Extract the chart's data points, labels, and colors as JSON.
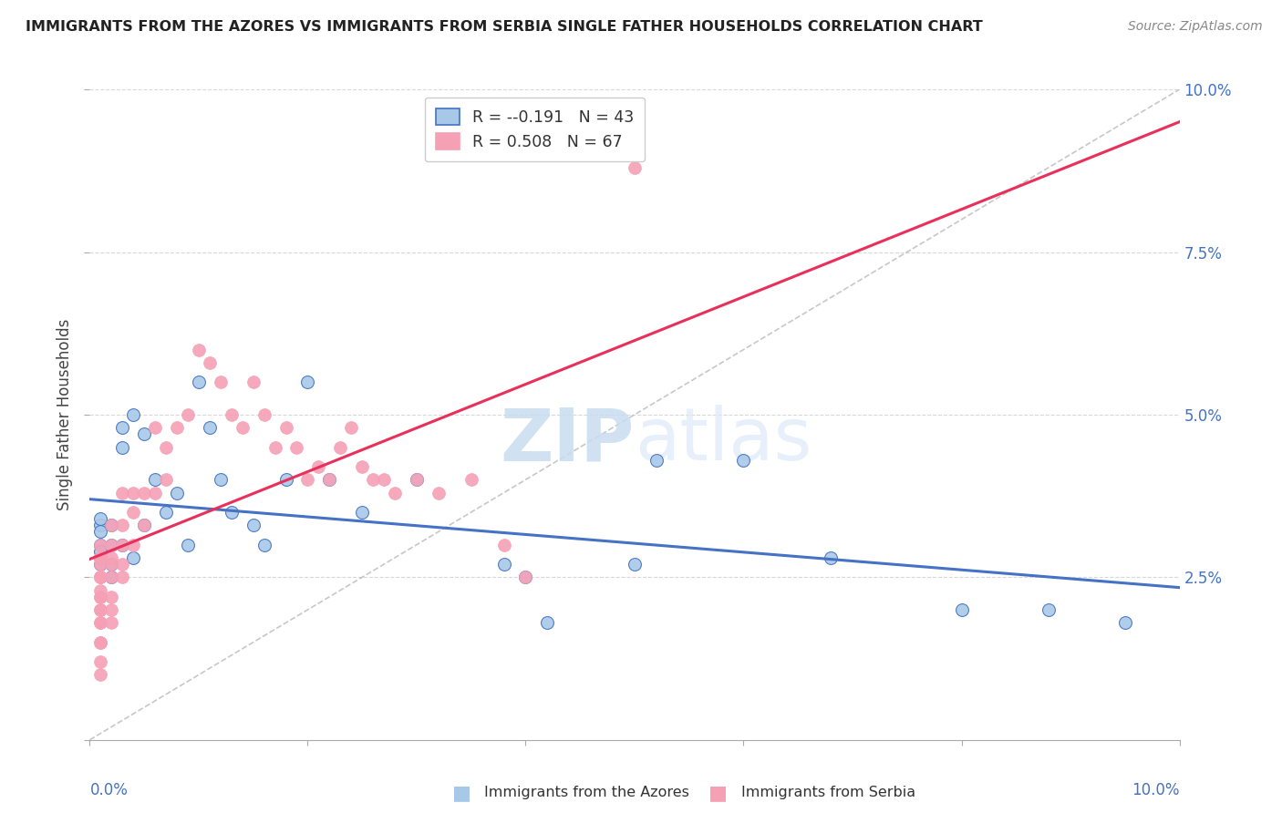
{
  "title": "IMMIGRANTS FROM THE AZORES VS IMMIGRANTS FROM SERBIA SINGLE FATHER HOUSEHOLDS CORRELATION CHART",
  "source": "Source: ZipAtlas.com",
  "ylabel": "Single Father Households",
  "xlim": [
    0.0,
    0.1
  ],
  "ylim": [
    0.0,
    0.1
  ],
  "legend_r1": "-0.191",
  "legend_n1": "43",
  "legend_r2": "0.508",
  "legend_n2": "67",
  "color_azores": "#a8c8e8",
  "color_serbia": "#f5a0b5",
  "color_line_azores": "#4472c4",
  "color_line_serbia": "#e8305a",
  "color_diag": "#b0b0b0",
  "watermark_zip": "ZIP",
  "watermark_atlas": "atlas",
  "azores_x": [
    0.001,
    0.001,
    0.001,
    0.001,
    0.001,
    0.001,
    0.001,
    0.002,
    0.002,
    0.002,
    0.002,
    0.003,
    0.003,
    0.003,
    0.004,
    0.004,
    0.005,
    0.005,
    0.006,
    0.007,
    0.008,
    0.009,
    0.01,
    0.011,
    0.012,
    0.013,
    0.015,
    0.016,
    0.018,
    0.02,
    0.022,
    0.025,
    0.03,
    0.038,
    0.04,
    0.042,
    0.05,
    0.052,
    0.06,
    0.068,
    0.08,
    0.088,
    0.095
  ],
  "azores_y": [
    0.033,
    0.03,
    0.028,
    0.027,
    0.034,
    0.032,
    0.029,
    0.033,
    0.03,
    0.027,
    0.025,
    0.048,
    0.045,
    0.03,
    0.05,
    0.028,
    0.047,
    0.033,
    0.04,
    0.035,
    0.038,
    0.03,
    0.055,
    0.048,
    0.04,
    0.035,
    0.033,
    0.03,
    0.04,
    0.055,
    0.04,
    0.035,
    0.04,
    0.027,
    0.025,
    0.018,
    0.027,
    0.043,
    0.043,
    0.028,
    0.02,
    0.02,
    0.018
  ],
  "serbia_x": [
    0.001,
    0.001,
    0.001,
    0.001,
    0.001,
    0.001,
    0.001,
    0.001,
    0.001,
    0.001,
    0.001,
    0.001,
    0.001,
    0.001,
    0.001,
    0.001,
    0.001,
    0.001,
    0.002,
    0.002,
    0.002,
    0.002,
    0.002,
    0.002,
    0.002,
    0.002,
    0.003,
    0.003,
    0.003,
    0.003,
    0.003,
    0.004,
    0.004,
    0.004,
    0.005,
    0.005,
    0.006,
    0.006,
    0.007,
    0.007,
    0.008,
    0.009,
    0.01,
    0.011,
    0.012,
    0.013,
    0.014,
    0.015,
    0.016,
    0.017,
    0.018,
    0.019,
    0.02,
    0.021,
    0.022,
    0.023,
    0.024,
    0.025,
    0.026,
    0.027,
    0.028,
    0.03,
    0.032,
    0.035,
    0.038,
    0.04,
    0.05
  ],
  "serbia_y": [
    0.01,
    0.012,
    0.015,
    0.015,
    0.018,
    0.018,
    0.02,
    0.02,
    0.022,
    0.022,
    0.023,
    0.025,
    0.025,
    0.025,
    0.027,
    0.028,
    0.028,
    0.03,
    0.018,
    0.02,
    0.022,
    0.025,
    0.027,
    0.028,
    0.03,
    0.033,
    0.025,
    0.027,
    0.03,
    0.033,
    0.038,
    0.03,
    0.035,
    0.038,
    0.033,
    0.038,
    0.038,
    0.048,
    0.04,
    0.045,
    0.048,
    0.05,
    0.06,
    0.058,
    0.055,
    0.05,
    0.048,
    0.055,
    0.05,
    0.045,
    0.048,
    0.045,
    0.04,
    0.042,
    0.04,
    0.045,
    0.048,
    0.042,
    0.04,
    0.04,
    0.038,
    0.04,
    0.038,
    0.04,
    0.03,
    0.025,
    0.088
  ]
}
